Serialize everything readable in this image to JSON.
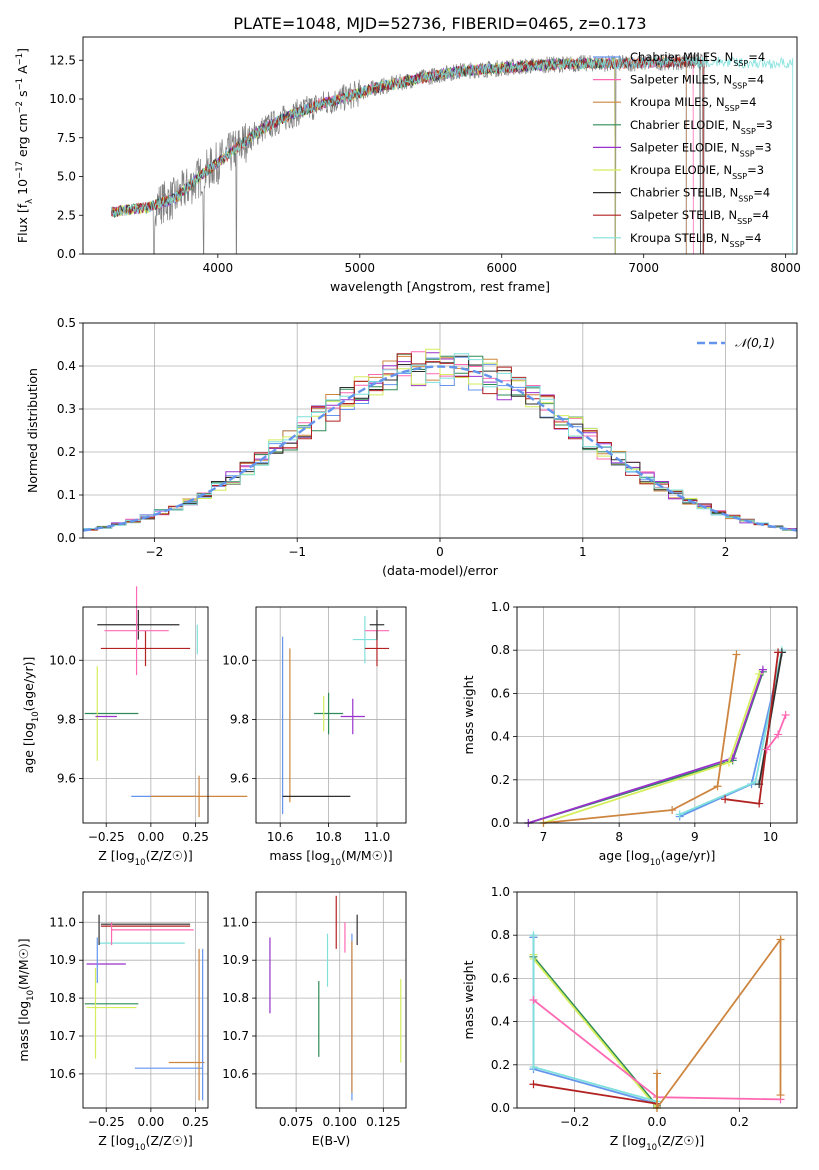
{
  "title": "PLATE=1048, MJD=52736, FIBERID=0465, z=0.173",
  "colors": {
    "grid": "#b0b0b0",
    "spectrum_data": "#808080",
    "series": [
      "#6495ed",
      "#ff69b4",
      "#cd853f",
      "#2e8b57",
      "#9932cc",
      "#d4ee5e",
      "#2f2f2f",
      "#b22222",
      "#7fe0dc",
      "#f08080",
      "#e377c2",
      "#ff7f0e"
    ]
  },
  "chart_data": [
    {
      "id": "spectrum",
      "type": "line",
      "xlabel": "wavelength [Angstrom, rest frame]",
      "ylabel": "Flux [f_λ 10^-17 erg cm^-2 s^-1 A^-1]",
      "xlim": [
        3050,
        8080
      ],
      "ylim": [
        0,
        14
      ],
      "xticks": [
        "4000",
        "5000",
        "6000",
        "7000",
        "8000"
      ],
      "yticks": [
        "0.0",
        "2.5",
        "5.0",
        "7.5",
        "10.0",
        "12.5"
      ],
      "legend_position": "upper-right",
      "legend": [
        {
          "label": "Chabrier MILES, N",
          "sub": "SSP",
          "tail": "=4",
          "color": "#6495ed",
          "x_end": 7300
        },
        {
          "label": "Salpeter MILES, N",
          "sub": "SSP",
          "tail": "=4",
          "color": "#ff69b4",
          "x_end": 7350
        },
        {
          "label": "Kroupa MILES, N",
          "sub": "SSP",
          "tail": "=4",
          "color": "#cd853f",
          "x_end": 7300
        },
        {
          "label": "Chabrier ELODIE, N",
          "sub": "SSP",
          "tail": "=3",
          "color": "#2e8b57",
          "x_end": 6800
        },
        {
          "label": "Salpeter ELODIE, N",
          "sub": "SSP",
          "tail": "=3",
          "color": "#9932cc",
          "x_end": 6800
        },
        {
          "label": "Kroupa ELODIE, N",
          "sub": "SSP",
          "tail": "=3",
          "color": "#d4ee5e",
          "x_end": 6800
        },
        {
          "label": "Chabrier STELIB, N",
          "sub": "SSP",
          "tail": "=4",
          "color": "#2f2f2f",
          "x_end": 7400
        },
        {
          "label": "Salpeter STELIB, N",
          "sub": "SSP",
          "tail": "=4",
          "color": "#b22222",
          "x_end": 7420
        },
        {
          "label": "Kroupa STELIB, N",
          "sub": "SSP",
          "tail": "=4",
          "color": "#7fe0dc",
          "x_end": 8050
        }
      ],
      "data_series": "observed spectrum",
      "model_trend": {
        "x": [
          3250,
          3500,
          3700,
          3900,
          4100,
          4300,
          4500,
          4700,
          4900,
          5100,
          5400,
          5700,
          6000,
          6300,
          6600,
          6900,
          7200,
          7500,
          7800,
          8000
        ],
        "y": [
          2.7,
          3.0,
          3.6,
          5.2,
          6.6,
          8.0,
          8.9,
          9.6,
          10.1,
          10.7,
          11.3,
          11.8,
          12.0,
          12.2,
          12.3,
          12.3,
          12.4,
          12.4,
          12.3,
          12.3
        ]
      }
    },
    {
      "id": "residuals",
      "type": "line",
      "xlabel": "(data-model)/error",
      "ylabel": "Normed distribution",
      "xlim": [
        -2.5,
        2.5
      ],
      "ylim": [
        0,
        0.5
      ],
      "xticks": [
        "−2",
        "−1",
        "0",
        "1",
        "2"
      ],
      "yticks": [
        "0.0",
        "0.1",
        "0.2",
        "0.3",
        "0.4",
        "0.5"
      ],
      "legend": [
        {
          "label": "𝒩(0,1)",
          "color": "#6495ed"
        }
      ],
      "bin_width": 0.1
    },
    {
      "id": "age_vs_Z",
      "type": "scatter",
      "xlabel": "Z [log10(Z/Z☉)]",
      "ylabel": "age  [log10(age/yr)]",
      "xlim": [
        -0.38,
        0.32
      ],
      "ylim": [
        9.45,
        10.18
      ],
      "xticks": [
        "−0.25",
        "0.00",
        "0.25"
      ],
      "yticks": [
        "9.6",
        "9.8",
        "10.0"
      ],
      "errorbars": [
        {
          "color": "#6495ed",
          "x": 0.07,
          "dx": 0.18,
          "y": 9.54,
          "dy": 0.0
        },
        {
          "color": "#cd853f",
          "x": 0.27,
          "dx": 0.27,
          "y": 9.54,
          "dy": 0.07
        },
        {
          "color": "#2e8b57",
          "x": -0.22,
          "dx": 0.15,
          "y": 9.82,
          "dy": 0.0
        },
        {
          "color": "#d4ee5e",
          "x": -0.3,
          "dx": 0.0,
          "y": 9.82,
          "dy": 0.16
        },
        {
          "color": "#9932cc",
          "x": -0.25,
          "dx": 0.06,
          "y": 9.81,
          "dy": 0.0
        },
        {
          "color": "#2f2f2f",
          "x": -0.07,
          "dx": 0.23,
          "y": 10.12,
          "dy": 0.05
        },
        {
          "color": "#b22222",
          "x": -0.03,
          "dx": 0.25,
          "y": 10.04,
          "dy": 0.06
        },
        {
          "color": "#7fe0dc",
          "x": 0.26,
          "dx": 0.0,
          "y": 10.07,
          "dy": 0.05
        },
        {
          "color": "#ff69b4",
          "x": -0.08,
          "dx": 0.18,
          "y": 10.1,
          "dy": 0.15
        }
      ]
    },
    {
      "id": "age_vs_mass",
      "type": "scatter",
      "xlabel": "mass [log10(M/M☉)]",
      "ylabel": "",
      "xlim": [
        10.5,
        11.12
      ],
      "ylim": [
        9.45,
        10.18
      ],
      "xticks": [
        "10.6",
        "10.8",
        "11.0"
      ],
      "yticks": [
        "9.6",
        "9.8",
        "10.0"
      ],
      "errorbars": [
        {
          "color": "#6495ed",
          "x": 10.61,
          "dx": 0.0,
          "y": 9.78,
          "dy": 0.3
        },
        {
          "color": "#cd853f",
          "x": 10.64,
          "dx": 0.0,
          "y": 9.78,
          "dy": 0.26
        },
        {
          "color": "#2f2f2f",
          "x": 10.75,
          "dx": 0.14,
          "y": 9.54,
          "dy": 0.0
        },
        {
          "color": "#2e8b57",
          "x": 10.8,
          "dx": 0.06,
          "y": 9.82,
          "dy": 0.07
        },
        {
          "color": "#d4ee5e",
          "x": 10.78,
          "dx": 0.0,
          "y": 9.82,
          "dy": 0.06
        },
        {
          "color": "#9932cc",
          "x": 10.9,
          "dx": 0.05,
          "y": 9.81,
          "dy": 0.06
        },
        {
          "color": "#7fe0dc",
          "x": 10.95,
          "dx": 0.05,
          "y": 10.07,
          "dy": 0.08
        },
        {
          "color": "#b22222",
          "x": 11.0,
          "dx": 0.05,
          "y": 10.04,
          "dy": 0.06
        },
        {
          "color": "#ff69b4",
          "x": 11.0,
          "dx": 0.05,
          "y": 10.1,
          "dy": 0.0
        },
        {
          "color": "#2f2f2f",
          "x": 11.0,
          "dx": 0.03,
          "y": 10.12,
          "dy": 0.05
        }
      ]
    },
    {
      "id": "weight_vs_age",
      "type": "line",
      "xlabel": "age  [log10(age/yr)]",
      "ylabel": "mass weight",
      "xlim": [
        6.65,
        10.35
      ],
      "ylim": [
        0,
        1.0
      ],
      "xticks": [
        "7",
        "8",
        "9",
        "10"
      ],
      "yticks": [
        "0.0",
        "0.2",
        "0.4",
        "0.6",
        "0.8",
        "1.0"
      ],
      "series": [
        {
          "color": "#2e8b57",
          "x": [
            6.8,
            9.5,
            9.9
          ],
          "y": [
            0.0,
            0.29,
            0.7
          ]
        },
        {
          "color": "#9932cc",
          "x": [
            6.8,
            9.5,
            9.9
          ],
          "y": [
            0.0,
            0.3,
            0.71
          ]
        },
        {
          "color": "#d4ee5e",
          "x": [
            7.0,
            9.45,
            9.85
          ],
          "y": [
            0.0,
            0.28,
            0.69
          ]
        },
        {
          "color": "#cd853f",
          "x": [
            7.0,
            8.7,
            9.3,
            9.55
          ],
          "y": [
            0.0,
            0.06,
            0.17,
            0.78
          ]
        },
        {
          "color": "#6495ed",
          "x": [
            8.8,
            9.75,
            10.15
          ],
          "y": [
            0.03,
            0.18,
            0.79
          ]
        },
        {
          "color": "#7fe0dc",
          "x": [
            8.8,
            9.8,
            10.15
          ],
          "y": [
            0.04,
            0.19,
            0.8
          ]
        },
        {
          "color": "#2f2f2f",
          "x": [
            9.85,
            10.15
          ],
          "y": [
            0.18,
            0.79
          ]
        },
        {
          "color": "#b22222",
          "x": [
            9.4,
            9.85,
            10.1
          ],
          "y": [
            0.11,
            0.09,
            0.79
          ]
        },
        {
          "color": "#ff69b4",
          "x": [
            9.95,
            10.1,
            10.2
          ],
          "y": [
            0.34,
            0.41,
            0.5
          ]
        }
      ]
    },
    {
      "id": "mass_vs_Z",
      "type": "scatter",
      "xlabel": "Z [log10(Z/Z☉)]",
      "ylabel": "mass [log10(M/M☉)]",
      "xlim": [
        -0.38,
        0.32
      ],
      "ylim": [
        10.51,
        11.08
      ],
      "xticks": [
        "−0.25",
        "0.00",
        "0.25"
      ],
      "yticks": [
        "10.6",
        "10.7",
        "10.8",
        "10.9",
        "11.0"
      ],
      "errorbars": [
        {
          "color": "#6495ed",
          "x": 0.1,
          "dx": 0.19,
          "y": 10.615,
          "dy": 0.0
        },
        {
          "color": "#cd853f",
          "x": 0.2,
          "dx": 0.1,
          "y": 10.63,
          "dy": 0.0
        },
        {
          "color": "#cd853f",
          "x": 0.27,
          "dx": 0.0,
          "y": 10.73,
          "dy": 0.2
        },
        {
          "color": "#6495ed",
          "x": 0.29,
          "dx": 0.0,
          "y": 10.73,
          "dy": 0.2
        },
        {
          "color": "#2e8b57",
          "x": -0.22,
          "dx": 0.15,
          "y": 10.785,
          "dy": 0.0
        },
        {
          "color": "#d4ee5e",
          "x": -0.22,
          "dx": 0.14,
          "y": 10.775,
          "dy": 0.0
        },
        {
          "color": "#d4ee5e",
          "x": -0.31,
          "dx": 0.0,
          "y": 10.76,
          "dy": 0.12
        },
        {
          "color": "#9932cc",
          "x": -0.25,
          "dx": 0.11,
          "y": 10.89,
          "dy": 0.0
        },
        {
          "color": "#6495ed",
          "x": -0.3,
          "dx": 0.0,
          "y": 10.9,
          "dy": 0.06
        },
        {
          "color": "#7fe0dc",
          "x": -0.05,
          "dx": 0.24,
          "y": 10.945,
          "dy": 0.0
        },
        {
          "color": "#b22222",
          "x": -0.03,
          "dx": 0.25,
          "y": 10.99,
          "dy": 0.0
        },
        {
          "color": "#2f2f2f",
          "x": -0.03,
          "dx": 0.25,
          "y": 10.995,
          "dy": 0.0
        },
        {
          "color": "#2f2f2f",
          "x": -0.29,
          "dx": 0.0,
          "y": 10.98,
          "dy": 0.04
        },
        {
          "color": "#ff69b4",
          "x": -0.22,
          "dx": 0.0,
          "y": 10.97,
          "dy": 0.03
        },
        {
          "color": "#ff69b4",
          "x": 0.01,
          "dx": 0.23,
          "y": 10.98,
          "dy": 0.0
        }
      ]
    },
    {
      "id": "mass_vs_EBV",
      "type": "scatter",
      "xlabel": "E(B-V)",
      "ylabel": "",
      "xlim": [
        0.052,
        0.138
      ],
      "ylim": [
        10.51,
        11.08
      ],
      "xticks": [
        "0.075",
        "0.100",
        "0.125"
      ],
      "yticks": [
        "10.6",
        "10.7",
        "10.8",
        "10.9",
        "11.0"
      ],
      "errorbars": [
        {
          "color": "#9932cc",
          "x": 0.06,
          "dx": 0.0,
          "y": 10.86,
          "dy": 0.1
        },
        {
          "color": "#2e8b57",
          "x": 0.088,
          "dx": 0.0,
          "y": 10.745,
          "dy": 0.1
        },
        {
          "color": "#7fe0dc",
          "x": 0.093,
          "dx": 0.0,
          "y": 10.9,
          "dy": 0.07
        },
        {
          "color": "#b22222",
          "x": 0.098,
          "dx": 0.0,
          "y": 11.0,
          "dy": 0.07
        },
        {
          "color": "#ff69b4",
          "x": 0.103,
          "dx": 0.0,
          "y": 10.96,
          "dy": 0.04
        },
        {
          "color": "#6495ed",
          "x": 0.107,
          "dx": 0.0,
          "y": 10.75,
          "dy": 0.22
        },
        {
          "color": "#cd853f",
          "x": 0.107,
          "dx": 0.0,
          "y": 10.75,
          "dy": 0.2
        },
        {
          "color": "#2f2f2f",
          "x": 0.11,
          "dx": 0.0,
          "y": 10.98,
          "dy": 0.04
        },
        {
          "color": "#d4ee5e",
          "x": 0.135,
          "dx": 0.0,
          "y": 10.74,
          "dy": 0.11
        }
      ]
    },
    {
      "id": "weight_vs_Z",
      "type": "line",
      "xlabel": "Z [log10(Z/Z☉)]",
      "ylabel": "mass weight",
      "xlim": [
        -0.34,
        0.34
      ],
      "ylim": [
        0,
        1.0
      ],
      "xticks": [
        "−0.2",
        "0.0",
        "0.2"
      ],
      "yticks": [
        "0.0",
        "0.2",
        "0.4",
        "0.6",
        "0.8",
        "1.0"
      ],
      "series": [
        {
          "color": "#2e8b57",
          "x": [
            -0.3,
            -0.3,
            0.0
          ],
          "y": [
            0.79,
            0.7,
            0.01
          ]
        },
        {
          "color": "#d4ee5e",
          "x": [
            -0.3,
            -0.3,
            0.0
          ],
          "y": [
            0.71,
            0.69,
            0.0
          ]
        },
        {
          "color": "#6495ed",
          "x": [
            -0.3,
            -0.3,
            0.0
          ],
          "y": [
            0.79,
            0.18,
            0.02
          ]
        },
        {
          "color": "#7fe0dc",
          "x": [
            -0.3,
            -0.3,
            0.0
          ],
          "y": [
            0.8,
            0.19,
            0.03
          ]
        },
        {
          "color": "#b22222",
          "x": [
            -0.3,
            0.0
          ],
          "y": [
            0.11,
            0.02
          ]
        },
        {
          "color": "#ff69b4",
          "x": [
            -0.3,
            0.0,
            0.3
          ],
          "y": [
            0.5,
            0.05,
            0.04
          ]
        },
        {
          "color": "#cd853f",
          "x": [
            0.0,
            0.3,
            0.3
          ],
          "y": [
            0.0,
            0.78,
            0.06
          ]
        },
        {
          "color": "#cd853f",
          "x": [
            0.0,
            0.0
          ],
          "y": [
            0.16,
            0.0
          ]
        }
      ]
    }
  ]
}
